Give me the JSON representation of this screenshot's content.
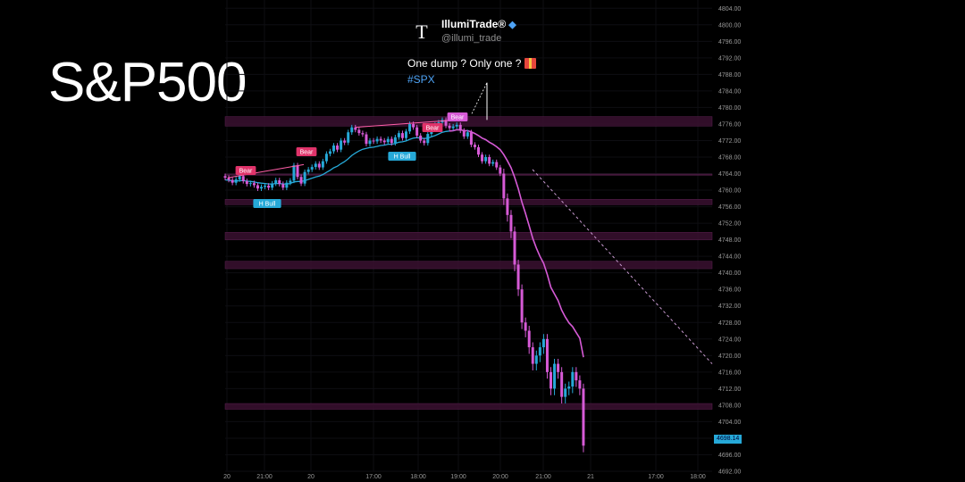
{
  "title": "S&P500",
  "tweet": {
    "avatar_letter": "T",
    "name": "IllumiTrade®",
    "verified_icon": "gem-icon",
    "handle": "@illumi_trade",
    "text": "One dump ? Only one ?",
    "gift_icon": "gift-icon",
    "hashtag": "#SPX"
  },
  "colors": {
    "background": "#000000",
    "bull_candle": "#26a9d8",
    "bear_candle": "#d65ad6",
    "zone": "#3a1030",
    "zone_edge": "#5a2050",
    "trend_line": "#ff5fa8",
    "ema": "#d65ad6",
    "ema_early": "#26a9d8",
    "label_bear": "#e0336a",
    "label_bull": "#26a9d8"
  },
  "chart_data": {
    "type": "candlestick",
    "ylim": [
      4692,
      4806
    ],
    "y_ticks": [
      "4804.00",
      "4800.00",
      "4796.00",
      "4792.00",
      "4788.00",
      "4784.00",
      "4780.00",
      "4776.00",
      "4772.00",
      "4768.00",
      "4764.00",
      "4760.00",
      "4756.00",
      "4752.00",
      "4748.00",
      "4744.00",
      "4740.00",
      "4736.00",
      "4732.00",
      "4728.00",
      "4724.00",
      "4720.00",
      "4716.00",
      "4712.00",
      "4708.00",
      "4704.00",
      "4700.00",
      "4696.00",
      "4692.00"
    ],
    "x_ticks": [
      "20",
      "21:00",
      "20",
      "17:00",
      "18:00",
      "19:00",
      "20:00",
      "21:00",
      "21",
      "17:00",
      "18:00"
    ],
    "last_price_label": "4698.14",
    "closes": [
      4763.0,
      4762.5,
      4761.8,
      4762.6,
      4763.4,
      4762.2,
      4761.5,
      4761.7,
      4761.2,
      4760.4,
      4760.8,
      4761.1,
      4760.6,
      4761.6,
      4762.4,
      4761.5,
      4760.6,
      4761.8,
      4762.3,
      4766.0,
      4763.2,
      4761.6,
      4764.4,
      4765.0,
      4765.6,
      4766.4,
      4765.5,
      4767.0,
      4768.8,
      4769.4,
      4770.8,
      4769.8,
      4772.0,
      4771.5,
      4774.0,
      4775.2,
      4774.6,
      4773.8,
      4773.5,
      4771.2,
      4772.0,
      4771.8,
      4772.4,
      4772.0,
      4771.6,
      4772.4,
      4771.4,
      4772.8,
      4773.8,
      4772.6,
      4774.2,
      4776.0,
      4775.2,
      4773.2,
      4772.0,
      4771.4,
      4773.6,
      4775.0,
      4775.8,
      4776.4,
      4777.0,
      4775.6,
      4775.0,
      4775.4,
      4775.8,
      4774.4,
      4773.0,
      4774.0,
      4771.0,
      4770.4,
      4768.6,
      4767.0,
      4768.0,
      4766.4,
      4766.8,
      4765.5,
      4764.0,
      4758.0,
      4754.0,
      4750.0,
      4742.0,
      4736.0,
      4728.0,
      4726.0,
      4722.0,
      4718.0,
      4720.0,
      4722.0,
      4724.0,
      4716.0,
      4712.0,
      4718.0,
      4716.0,
      4710.0,
      4712.0,
      4712.5,
      4716.0,
      4714.0,
      4712.0,
      4698.2
    ],
    "ema_values": [
      4762.5,
      4762.4,
      4762.2,
      4762.2,
      4762.3,
      4762.3,
      4762.2,
      4762.1,
      4762.0,
      4761.8,
      4761.7,
      4761.6,
      4761.5,
      4761.5,
      4761.6,
      4761.6,
      4761.5,
      4761.5,
      4761.6,
      4762.0,
      4762.1,
      4762.1,
      4762.3,
      4762.6,
      4762.9,
      4763.2,
      4763.4,
      4763.8,
      4764.3,
      4764.8,
      4765.4,
      4765.8,
      4766.4,
      4766.9,
      4767.6,
      4768.4,
      4769.0,
      4769.5,
      4769.9,
      4770.1,
      4770.3,
      4770.4,
      4770.6,
      4770.8,
      4770.9,
      4771.1,
      4771.1,
      4771.3,
      4771.6,
      4771.7,
      4771.9,
      4772.3,
      4772.6,
      4772.7,
      4772.6,
      4772.5,
      4772.6,
      4772.9,
      4773.2,
      4773.6,
      4774.0,
      4774.2,
      4774.3,
      4774.4,
      4774.6,
      4774.6,
      4774.4,
      4774.4,
      4774.1,
      4773.7,
      4773.2,
      4772.6,
      4772.2,
      4771.6,
      4771.1,
      4770.5,
      4769.8,
      4768.6,
      4767.1,
      4765.4,
      4763.1,
      4760.4,
      4757.1,
      4754.4,
      4751.4,
      4748.3,
      4746.0,
      4744.0,
      4742.3,
      4739.6,
      4736.5,
      4734.9,
      4733.3,
      4731.0,
      4729.3,
      4727.9,
      4727.0,
      4725.6,
      4724.2,
      4719.6
    ],
    "trend_lines": [
      {
        "from": [
          "21:00",
          4763.0
        ],
        "to": [
          "20",
          4766.0
        ]
      },
      {
        "from": [
          "17:00",
          4775.2
        ],
        "to": [
          "19:00",
          4777.0
        ]
      },
      {
        "from": [
          "19:00",
          4777.0
        ],
        "to": [
          "19:00",
          4786.0
        ]
      },
      {
        "from": [
          "21:00",
          4765.0
        ],
        "to": [
          "18:00",
          4718.0
        ],
        "dashed": true
      }
    ],
    "zones": [
      [
        4775.5,
        4777.8
      ],
      [
        4756.5,
        4757.8
      ],
      [
        4748.0,
        4749.8
      ],
      [
        4741.0,
        4742.8
      ],
      [
        4707.0,
        4708.4
      ],
      [
        4763.6,
        4763.9
      ]
    ],
    "labels": [
      {
        "text": "Bear",
        "type": "bear"
      },
      {
        "text": "Bear",
        "type": "bear"
      },
      {
        "text": "Bear",
        "type": "bear"
      },
      {
        "text": "Bear",
        "type": "bear_pink"
      },
      {
        "text": "H Bull",
        "type": "bull"
      },
      {
        "text": "H Bull",
        "type": "bull"
      }
    ]
  }
}
